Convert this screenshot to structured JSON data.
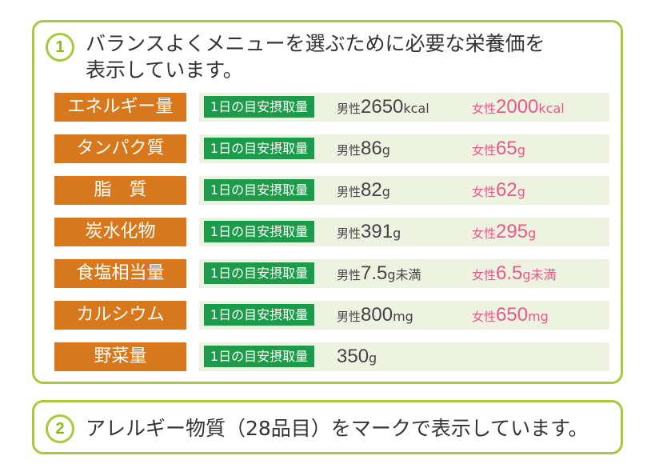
{
  "section1": {
    "number": "1",
    "intro_line1": "バランスよくメニューを選ぶために必要な栄養価を",
    "intro_line2": "表示しています。",
    "tag_label": "1日の目安摂取量",
    "rows": [
      {
        "category": "エネルギー量",
        "male_label": "男性",
        "male_value": "2650",
        "male_unit": "kcal",
        "female_label": "女性",
        "female_value": "2000",
        "female_unit": "kcal"
      },
      {
        "category": "タンパク質",
        "male_label": "男性",
        "male_value": "86",
        "male_unit": "g",
        "female_label": "女性",
        "female_value": "65",
        "female_unit": "g"
      },
      {
        "category": "脂　質",
        "male_label": "男性",
        "male_value": "82",
        "male_unit": "g",
        "female_label": "女性",
        "female_value": "62",
        "female_unit": "g"
      },
      {
        "category": "炭水化物",
        "male_label": "男性",
        "male_value": "391",
        "male_unit": "g",
        "female_label": "女性",
        "female_value": "295",
        "female_unit": "g"
      },
      {
        "category": "食塩相当量",
        "male_label": "男性",
        "male_value": "7.5",
        "male_unit": "g未満",
        "female_label": "女性",
        "female_value": "6.5",
        "female_unit": "g未満"
      },
      {
        "category": "カルシウム",
        "male_label": "男性",
        "male_value": "800",
        "male_unit": "mg",
        "female_label": "女性",
        "female_value": "650",
        "female_unit": "mg"
      },
      {
        "category": "野菜量",
        "value": "350",
        "unit": "g"
      }
    ]
  },
  "section2": {
    "number": "2",
    "text": "アレルギー物質（28品目）をマークで表示しています。"
  },
  "colors": {
    "border": "#a7c93a",
    "category_bg": "#d6781b",
    "tag_bg": "#1c9b49",
    "row_bg": "#eef2e1",
    "female_text": "#e8598a"
  }
}
